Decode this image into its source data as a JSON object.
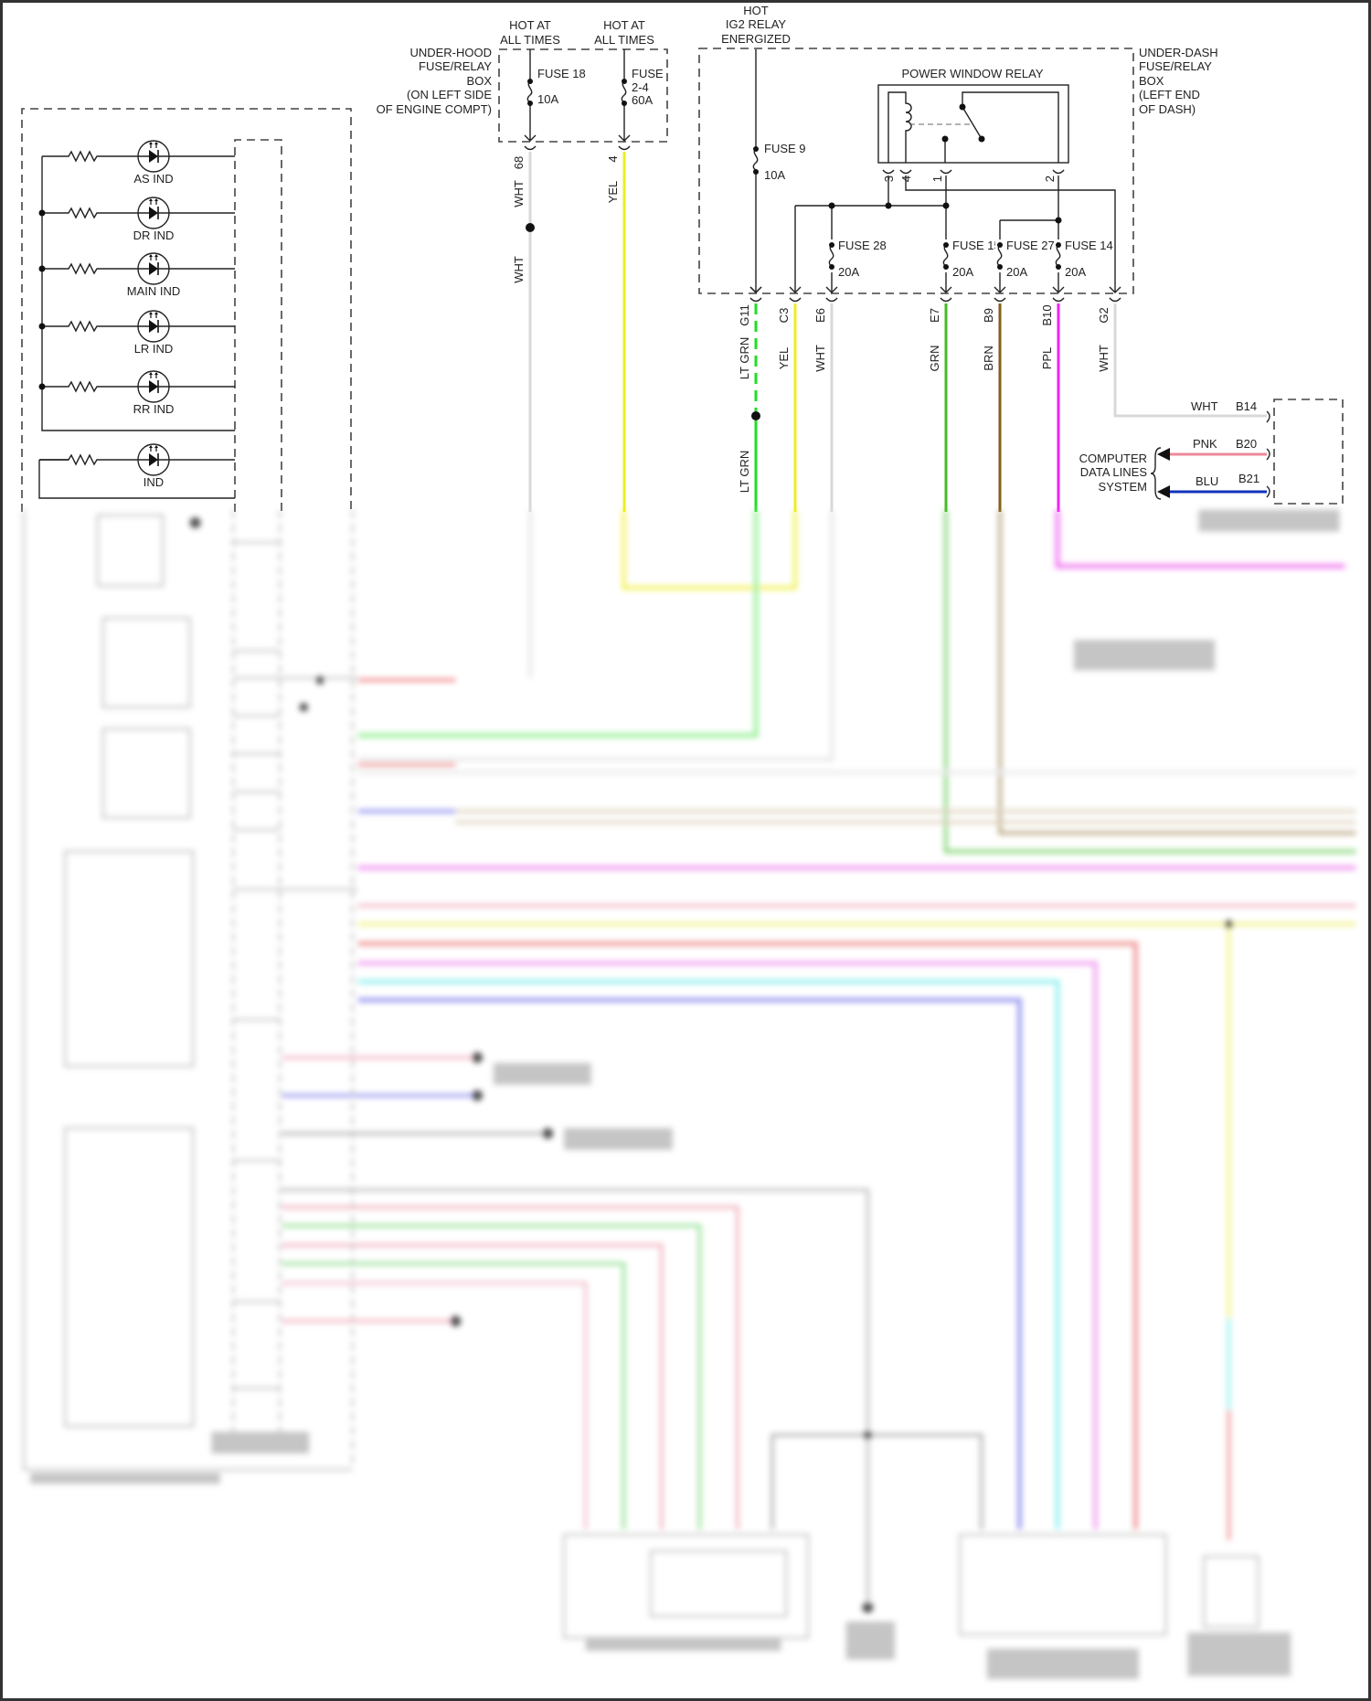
{
  "under_hood": {
    "box_label": [
      "UNDER-HOOD",
      "FUSE/RELAY",
      "BOX",
      "(ON LEFT SIDE",
      "OF ENGINE COMPT)"
    ],
    "hot_left": [
      "HOT AT",
      "ALL TIMES"
    ],
    "hot_right": [
      "HOT AT",
      "ALL TIMES"
    ],
    "fuse18": {
      "name": "FUSE 18",
      "rating": "10A"
    },
    "fuse24": {
      "name": [
        "FUSE",
        "2-4"
      ],
      "rating": "60A"
    },
    "pins": [
      "68",
      "4"
    ],
    "wires": [
      "WHT",
      "YEL",
      "WHT"
    ]
  },
  "ig2": [
    "HOT",
    "IG2 RELAY",
    "ENERGIZED"
  ],
  "under_dash": {
    "box_label": [
      "UNDER-DASH",
      "FUSE/RELAY",
      "BOX",
      "(LEFT END",
      "OF DASH)"
    ],
    "relay_title": "POWER WINDOW RELAY",
    "relay_pins": [
      "3",
      "4",
      "1",
      "2"
    ],
    "fuse9": {
      "name": "FUSE 9",
      "rating": "10A"
    },
    "fuses": [
      {
        "name": "FUSE 28",
        "rating": "20A"
      },
      {
        "name": "FUSE 15",
        "rating": "20A"
      },
      {
        "name": "FUSE 27",
        "rating": "20A"
      },
      {
        "name": "FUSE 14",
        "rating": "20A"
      }
    ],
    "connectors": [
      {
        "pin": "G11",
        "wire": "LT GRN",
        "color": "#22dd22"
      },
      {
        "pin": "C3",
        "wire": "YEL",
        "color": "#eeee22"
      },
      {
        "pin": "E6",
        "wire": "WHT",
        "color": "#d8d8d8"
      },
      {
        "pin": "E7",
        "wire": "GRN",
        "color": "#44bb22"
      },
      {
        "pin": "B9",
        "wire": "BRN",
        "color": "#806018"
      },
      {
        "pin": "B10",
        "wire": "PPL",
        "color": "#ee22ee"
      },
      {
        "pin": "G2",
        "wire": "WHT",
        "color": "#d8d8d8"
      }
    ],
    "lt_grn_lower": "LT GRN"
  },
  "data_lines": {
    "label": [
      "COMPUTER",
      "DATA LINES",
      "SYSTEM"
    ],
    "wires": [
      {
        "wire": "WHT",
        "pin": "B14",
        "color": "#d8d8d8"
      },
      {
        "wire": "PNK",
        "pin": "B20",
        "color": "#ee8899"
      },
      {
        "wire": "BLU",
        "pin": "B21",
        "color": "#1133bb"
      }
    ]
  },
  "indicators": [
    "AS IND",
    "DR IND",
    "MAIN IND",
    "LR IND",
    "RR IND",
    "IND"
  ]
}
